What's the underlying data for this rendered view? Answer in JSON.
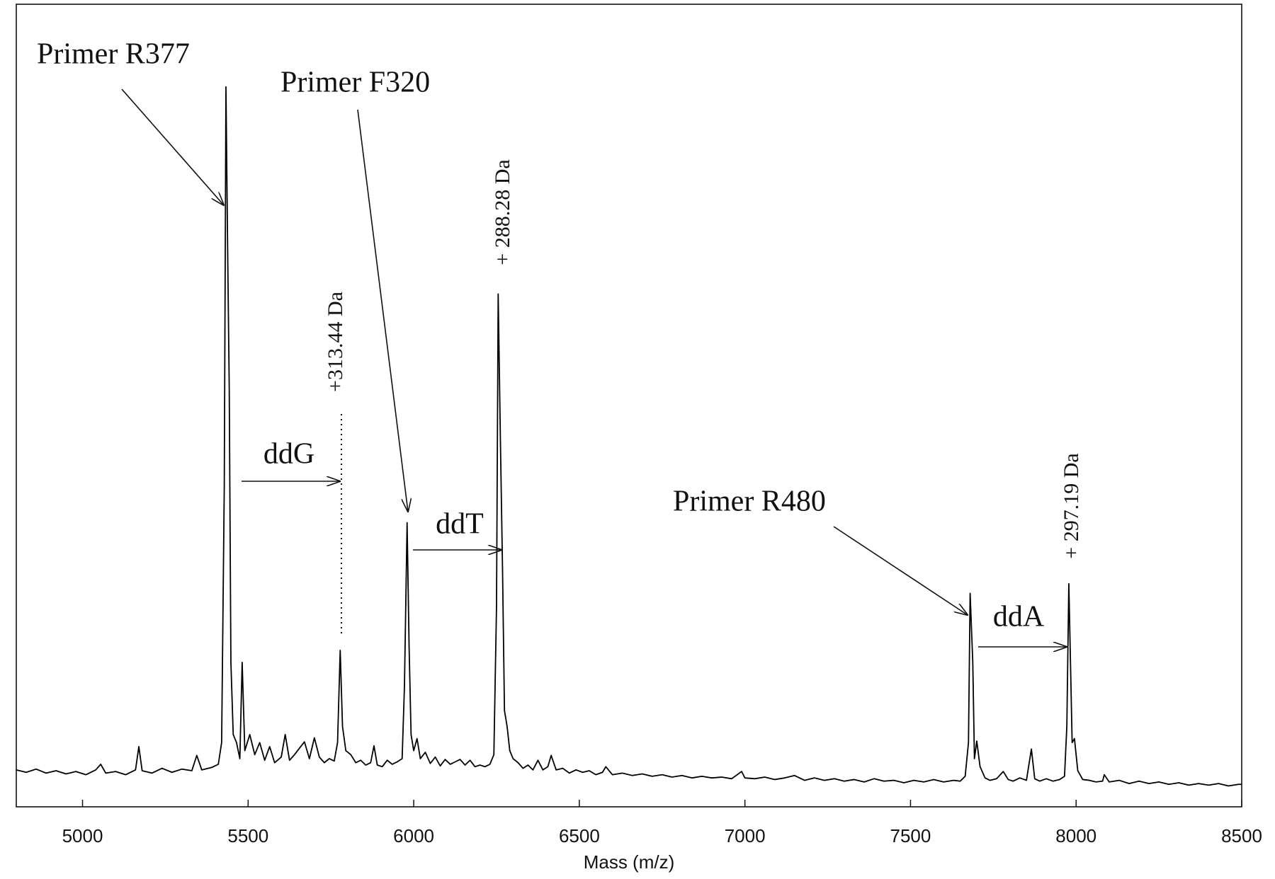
{
  "chart_data": {
    "type": "line",
    "x_label": "Mass (m/z)",
    "xlim": [
      4800,
      8500
    ],
    "xticks": [
      5000,
      5500,
      6000,
      6500,
      7000,
      7500,
      8000,
      8500
    ],
    "ylim": [
      0,
      100
    ],
    "color": "#000000",
    "x": [
      4800,
      4830,
      4860,
      4890,
      4920,
      4950,
      4980,
      5010,
      5040,
      5055,
      5070,
      5100,
      5130,
      5160,
      5170,
      5180,
      5210,
      5240,
      5270,
      5300,
      5330,
      5345,
      5360,
      5390,
      5410,
      5420,
      5428,
      5433,
      5438,
      5443,
      5448,
      5455,
      5465,
      5475,
      5482,
      5490,
      5505,
      5520,
      5535,
      5550,
      5565,
      5580,
      5600,
      5612,
      5625,
      5640,
      5655,
      5670,
      5685,
      5700,
      5715,
      5730,
      5745,
      5760,
      5770,
      5778,
      5785,
      5795,
      5810,
      5825,
      5840,
      5855,
      5870,
      5880,
      5890,
      5905,
      5920,
      5935,
      5950,
      5965,
      5972,
      5980,
      5986,
      5992,
      6000,
      6010,
      6020,
      6035,
      6050,
      6065,
      6080,
      6095,
      6110,
      6125,
      6140,
      6155,
      6170,
      6185,
      6200,
      6215,
      6230,
      6242,
      6250,
      6255,
      6262,
      6268,
      6274,
      6282,
      6290,
      6300,
      6315,
      6330,
      6345,
      6360,
      6375,
      6390,
      6405,
      6415,
      6430,
      6450,
      6470,
      6490,
      6510,
      6530,
      6550,
      6570,
      6580,
      6600,
      6630,
      6660,
      6690,
      6720,
      6750,
      6780,
      6810,
      6840,
      6870,
      6900,
      6930,
      6960,
      6990,
      7000,
      7030,
      7060,
      7090,
      7120,
      7150,
      7180,
      7210,
      7240,
      7270,
      7300,
      7330,
      7360,
      7390,
      7420,
      7450,
      7480,
      7510,
      7540,
      7570,
      7600,
      7630,
      7650,
      7665,
      7675,
      7680,
      7688,
      7693,
      7700,
      7710,
      7725,
      7740,
      7760,
      7780,
      7795,
      7810,
      7830,
      7850,
      7865,
      7875,
      7890,
      7910,
      7930,
      7950,
      7965,
      7972,
      7978,
      7983,
      7988,
      7995,
      8005,
      8020,
      8040,
      8060,
      8080,
      8085,
      8100,
      8130,
      8160,
      8190,
      8220,
      8250,
      8280,
      8310,
      8340,
      8370,
      8400,
      8430,
      8460,
      8490,
      8500
    ],
    "values": [
      4.6,
      4.3,
      4.7,
      4.2,
      4.5,
      4.1,
      4.4,
      4.0,
      4.6,
      5.3,
      4.2,
      4.4,
      4.0,
      4.6,
      7.5,
      4.5,
      4.2,
      4.8,
      4.3,
      4.7,
      4.5,
      6.4,
      4.6,
      4.9,
      5.3,
      8,
      40,
      89.7,
      70,
      52,
      18,
      9,
      8,
      6,
      18,
      7,
      9,
      6.5,
      8,
      5.8,
      7.5,
      5.5,
      6.2,
      9,
      5.8,
      6.5,
      7.3,
      8.1,
      6,
      8.6,
      6.2,
      5.5,
      6,
      5.7,
      8,
      19.5,
      10,
      7,
      6.5,
      5.5,
      5.8,
      5.2,
      5.5,
      7.6,
      5.2,
      5.0,
      5.8,
      5.3,
      5.6,
      6,
      15,
      35.4,
      20,
      9,
      7,
      8.5,
      6,
      6.8,
      5.4,
      6.2,
      5.1,
      5.9,
      5.3,
      5.6,
      5.9,
      5.2,
      5.8,
      5.0,
      5.2,
      5.0,
      5.3,
      6.5,
      25,
      63.9,
      45,
      30,
      12,
      10,
      7,
      6,
      5.5,
      4.8,
      5.2,
      4.6,
      5.8,
      4.6,
      5.0,
      6.4,
      4.6,
      4.8,
      4.2,
      4.6,
      4.3,
      4.5,
      4.0,
      4.3,
      5.0,
      4.0,
      4.2,
      3.9,
      4.1,
      3.8,
      4.0,
      3.7,
      3.9,
      3.6,
      3.8,
      3.6,
      3.7,
      3.5,
      4.4,
      3.6,
      3.5,
      3.7,
      3.4,
      3.6,
      3.9,
      3.3,
      3.6,
      3.3,
      3.5,
      3.2,
      3.4,
      3.1,
      3.5,
      3.2,
      3.3,
      3.0,
      3.3,
      3.1,
      3.4,
      3.1,
      3.3,
      3.2,
      3.8,
      8,
      26.6,
      18,
      6,
      8.2,
      5,
      3.6,
      3.3,
      3.5,
      4.4,
      3.4,
      3.2,
      3.6,
      3.3,
      7.2,
      3.5,
      3.2,
      3.5,
      3.2,
      3.4,
      3.8,
      10,
      27.8,
      18,
      8,
      8.5,
      4.5,
      3.4,
      3.3,
      3.1,
      3.2,
      4.0,
      3.1,
      3.3,
      2.9,
      3.2,
      2.9,
      3.1,
      2.8,
      3.0,
      2.7,
      2.9,
      2.7,
      2.9,
      2.6,
      2.8,
      2.8
    ],
    "annotations": [
      "Primer R377",
      "Primer F320",
      "Primer R480",
      "ddG",
      "ddT",
      "ddA",
      "+313.44 Da",
      "+ 288.28 Da",
      "+ 297.19 Da"
    ]
  }
}
